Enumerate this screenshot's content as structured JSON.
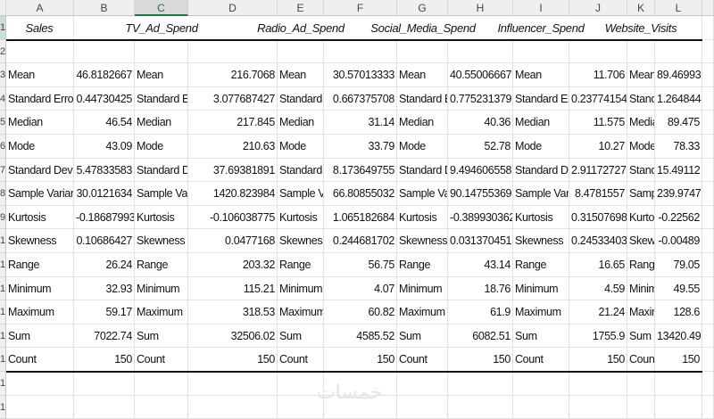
{
  "columns": [
    "A",
    "B",
    "C",
    "D",
    "E",
    "F",
    "G",
    "H",
    "I",
    "J",
    "K",
    "L"
  ],
  "selected_column": "C",
  "accent_color": "#217346",
  "variables": [
    {
      "name": "Sales",
      "values": [
        "46.8182667",
        "0.44730425",
        "46.54",
        "43.09",
        "5.47833583",
        "30.0121634",
        "-0.18687993",
        "0.10686427",
        "26.24",
        "32.93",
        "59.17",
        "7022.74",
        "150"
      ]
    },
    {
      "name": "TV_Ad_Spend",
      "values": [
        "216.7068",
        "3.077687427",
        "217.845",
        "210.63",
        "37.69381891",
        "1420.823984",
        "-0.106038775",
        "0.0477168",
        "203.32",
        "115.21",
        "318.53",
        "32506.02",
        "150"
      ]
    },
    {
      "name": "Radio_Ad_Spend",
      "values": [
        "30.57013333",
        "0.667375708",
        "31.14",
        "33.79",
        "8.173649755",
        "66.80855032",
        "1.065182684",
        "0.244681702",
        "56.75",
        "4.07",
        "60.82",
        "4585.52",
        "150"
      ]
    },
    {
      "name": "Social_Media_Spend",
      "values": [
        "40.55006667",
        "0.775231379",
        "40.36",
        "52.78",
        "9.494606558",
        "90.14755369",
        "-0.389930362",
        "0.031370451",
        "43.14",
        "18.76",
        "61.9",
        "6082.51",
        "150"
      ]
    },
    {
      "name": "Influencer_Spend",
      "values": [
        "11.706",
        "0.23774154",
        "11.575",
        "10.27",
        "2.91172727",
        "8.4781557",
        "0.31507698",
        "0.24533403",
        "16.65",
        "4.59",
        "21.24",
        "1755.9",
        "150"
      ]
    },
    {
      "name": "Website_Visits",
      "values": [
        "89.46993",
        "1.264844",
        "89.475",
        "78.33",
        "15.49112",
        "239.9747",
        "-0.22562",
        "-0.00489",
        "79.05",
        "49.55",
        "128.6",
        "13420.49",
        "150"
      ]
    }
  ],
  "stat_labels": [
    "Mean",
    "Standard Error",
    "Median",
    "Mode",
    "Standard Deviation",
    "Sample Variance",
    "Kurtosis",
    "Skewness",
    "Range",
    "Minimum",
    "Maximum",
    "Sum",
    "Count"
  ],
  "watermark": "خمسات"
}
